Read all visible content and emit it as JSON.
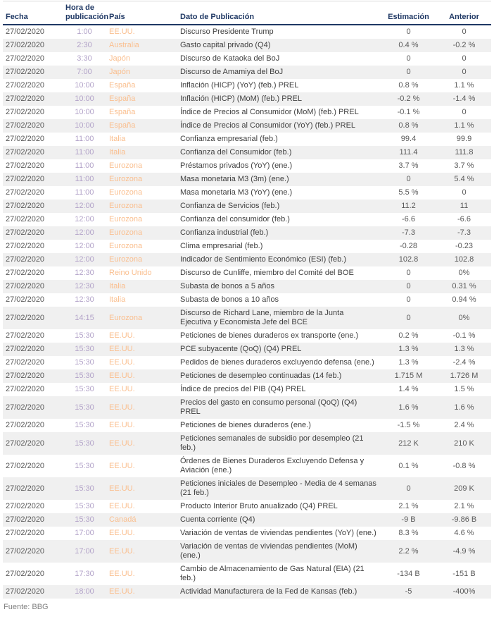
{
  "colors": {
    "header_text": "#1f3864",
    "top_border": "#d9d9d9",
    "row_stripe": "#f0f0f0",
    "time_text": "#b2a2c8",
    "country_text": "#fabf8f",
    "event_text": "#404040",
    "value_text": "#595959",
    "source_text": "#808080"
  },
  "table": {
    "headers": {
      "fecha": "Fecha",
      "hora": "Hora de publicación",
      "pais": "País",
      "dato": "Dato de Publicación",
      "estimacion": "Estimación",
      "anterior": "Anterior"
    },
    "rows": [
      {
        "fecha": "27/02/2020",
        "hora": "1:00",
        "pais": "EE.UU.",
        "dato": "Discurso Presidente Trump",
        "estimacion": "0",
        "anterior": "0"
      },
      {
        "fecha": "27/02/2020",
        "hora": "2:30",
        "pais": "Australia",
        "dato": "Gasto capital privado (Q4)",
        "estimacion": "0.4 %",
        "anterior": "-0.2 %"
      },
      {
        "fecha": "27/02/2020",
        "hora": "3:30",
        "pais": "Japón",
        "dato": "Discurso de Kataoka del BoJ",
        "estimacion": "0",
        "anterior": "0"
      },
      {
        "fecha": "27/02/2020",
        "hora": "7:00",
        "pais": "Japón",
        "dato": "Discurso de Amamiya del BoJ",
        "estimacion": "0",
        "anterior": "0"
      },
      {
        "fecha": "27/02/2020",
        "hora": "10:00",
        "pais": "España",
        "dato": "Inflación (HICP) (YoY) (feb.) PREL",
        "estimacion": "0.8 %",
        "anterior": "1.1 %"
      },
      {
        "fecha": "27/02/2020",
        "hora": "10:00",
        "pais": "España",
        "dato": "Inflación (HICP) (MoM) (feb.) PREL",
        "estimacion": "-0.2 %",
        "anterior": "-1.4 %"
      },
      {
        "fecha": "27/02/2020",
        "hora": "10:00",
        "pais": "España",
        "dato": "Índice de Precios al Consumidor (MoM) (feb.) PREL",
        "estimacion": "-0.1 %",
        "anterior": "0"
      },
      {
        "fecha": "27/02/2020",
        "hora": "10:00",
        "pais": "España",
        "dato": "Índice de Precios al Consumidor (YoY) (feb.) PREL",
        "estimacion": "0.8 %",
        "anterior": "1.1 %"
      },
      {
        "fecha": "27/02/2020",
        "hora": "11:00",
        "pais": "Italia",
        "dato": "Confianza empresarial (feb.)",
        "estimacion": "99.4",
        "anterior": "99.9"
      },
      {
        "fecha": "27/02/2020",
        "hora": "11:00",
        "pais": "Italia",
        "dato": "Confianza del Consumidor (feb.)",
        "estimacion": "111.4",
        "anterior": "111.8"
      },
      {
        "fecha": "27/02/2020",
        "hora": "11:00",
        "pais": "Eurozona",
        "dato": "Préstamos privados (YoY) (ene.)",
        "estimacion": "3.7 %",
        "anterior": "3.7 %"
      },
      {
        "fecha": "27/02/2020",
        "hora": "11:00",
        "pais": "Eurozona",
        "dato": "Masa monetaria M3 (3m) (ene.)",
        "estimacion": "0",
        "anterior": "5.4 %"
      },
      {
        "fecha": "27/02/2020",
        "hora": "11:00",
        "pais": "Eurozona",
        "dato": "Masa monetaria M3 (YoY) (ene.)",
        "estimacion": "5.5 %",
        "anterior": "0"
      },
      {
        "fecha": "27/02/2020",
        "hora": "12:00",
        "pais": "Eurozona",
        "dato": "Confianza de Servicios (feb.)",
        "estimacion": "11.2",
        "anterior": "11"
      },
      {
        "fecha": "27/02/2020",
        "hora": "12:00",
        "pais": "Eurozona",
        "dato": "Confianza del consumidor (feb.)",
        "estimacion": "-6.6",
        "anterior": "-6.6"
      },
      {
        "fecha": "27/02/2020",
        "hora": "12:00",
        "pais": "Eurozona",
        "dato": "Confianza industrial (feb.)",
        "estimacion": "-7.3",
        "anterior": "-7.3"
      },
      {
        "fecha": "27/02/2020",
        "hora": "12:00",
        "pais": "Eurozona",
        "dato": "Clima empresarial (feb.)",
        "estimacion": "-0.28",
        "anterior": "-0.23"
      },
      {
        "fecha": "27/02/2020",
        "hora": "12:00",
        "pais": "Eurozona",
        "dato": "Indicador de Sentimiento Económico (ESI) (feb.)",
        "estimacion": "102.8",
        "anterior": "102.8"
      },
      {
        "fecha": "27/02/2020",
        "hora": "12:30",
        "pais": "Reino Unido",
        "dato": "Discurso de Cunliffe, miembro del Comité del BOE",
        "estimacion": "0",
        "anterior": "0%"
      },
      {
        "fecha": "27/02/2020",
        "hora": "12:30",
        "pais": "Italia",
        "dato": "Subasta de bonos a 5 años",
        "estimacion": "0",
        "anterior": "0.31 %"
      },
      {
        "fecha": "27/02/2020",
        "hora": "12:30",
        "pais": "Italia",
        "dato": "Subasta de bonos a 10 años",
        "estimacion": "0",
        "anterior": "0.94 %"
      },
      {
        "fecha": "27/02/2020",
        "hora": "14:15",
        "pais": "Eurozona",
        "dato": "Discurso de Richard Lane, miembro de la Junta Ejecutiva y Economista Jefe del BCE",
        "estimacion": "0",
        "anterior": "0%"
      },
      {
        "fecha": "27/02/2020",
        "hora": "15:30",
        "pais": "EE.UU.",
        "dato": "Peticiones de bienes duraderos ex transporte (ene.)",
        "estimacion": "0.2 %",
        "anterior": "-0.1 %"
      },
      {
        "fecha": "27/02/2020",
        "hora": "15:30",
        "pais": "EE.UU.",
        "dato": "PCE subyacente (QoQ) (Q4) PREL",
        "estimacion": "1.3 %",
        "anterior": "1.3 %"
      },
      {
        "fecha": "27/02/2020",
        "hora": "15:30",
        "pais": "EE.UU.",
        "dato": "Pedidos de bienes duraderos excluyendo defensa (ene.)",
        "estimacion": "1.3 %",
        "anterior": "-2.4 %"
      },
      {
        "fecha": "27/02/2020",
        "hora": "15:30",
        "pais": "EE.UU.",
        "dato": "Peticiones de desempleo continuadas (14 feb.)",
        "estimacion": "1.715 M",
        "anterior": "1.726 M"
      },
      {
        "fecha": "27/02/2020",
        "hora": "15:30",
        "pais": "EE.UU.",
        "dato": "Índice de precios del PIB (Q4) PREL",
        "estimacion": "1.4 %",
        "anterior": "1.5 %"
      },
      {
        "fecha": "27/02/2020",
        "hora": "15:30",
        "pais": "EE.UU.",
        "dato": "Precios del gasto en consumo personal (QoQ) (Q4) PREL",
        "estimacion": "1.6 %",
        "anterior": "1.6 %"
      },
      {
        "fecha": "27/02/2020",
        "hora": "15:30",
        "pais": "EE.UU.",
        "dato": "Peticiones de bienes duraderos (ene.)",
        "estimacion": "-1.5 %",
        "anterior": "2.4 %"
      },
      {
        "fecha": "27/02/2020",
        "hora": "15:30",
        "pais": "EE.UU.",
        "dato": "Peticiones semanales de subsidio por desempleo (21 feb.)",
        "estimacion": "212 K",
        "anterior": "210 K"
      },
      {
        "fecha": "27/02/2020",
        "hora": "15:30",
        "pais": "EE.UU.",
        "dato": "Órdenes de Bienes Duraderos Excluyendo Defensa y Aviación (ene.)",
        "estimacion": "0.1 %",
        "anterior": "-0.8 %"
      },
      {
        "fecha": "27/02/2020",
        "hora": "15:30",
        "pais": "EE.UU.",
        "dato": "Peticiones iniciales de Desempleo - Media de 4 semanas (21 feb.)",
        "estimacion": "0",
        "anterior": "209 K"
      },
      {
        "fecha": "27/02/2020",
        "hora": "15:30",
        "pais": "EE.UU.",
        "dato": "Producto Interior Bruto anualizado (Q4) PREL",
        "estimacion": "2.1 %",
        "anterior": "2.1 %"
      },
      {
        "fecha": "27/02/2020",
        "hora": "15:30",
        "pais": "Canadá",
        "dato": "Cuenta corriente (Q4)",
        "estimacion": "-9 B",
        "anterior": "-9.86 B"
      },
      {
        "fecha": "27/02/2020",
        "hora": "17:00",
        "pais": "EE.UU.",
        "dato": "Variación de ventas de viviendas pendientes (YoY) (ene.)",
        "estimacion": "8.3 %",
        "anterior": "4.6 %"
      },
      {
        "fecha": "27/02/2020",
        "hora": "17:00",
        "pais": "EE.UU.",
        "dato": "Variación de ventas de viviendas pendientes (MoM) (ene.)",
        "estimacion": "2.2 %",
        "anterior": "-4.9 %"
      },
      {
        "fecha": "27/02/2020",
        "hora": "17:30",
        "pais": "EE.UU.",
        "dato": "Cambio de Almacenamiento de Gas Natural (EIA) (21 feb.)",
        "estimacion": "-134 B",
        "anterior": "-151 B"
      },
      {
        "fecha": "27/02/2020",
        "hora": "18:00",
        "pais": "EE.UU.",
        "dato": "Actividad Manufacturera de la Fed de Kansas (feb.)",
        "estimacion": "-5",
        "anterior": "-400%"
      }
    ]
  },
  "footer": {
    "source": "Fuente: BBG"
  }
}
